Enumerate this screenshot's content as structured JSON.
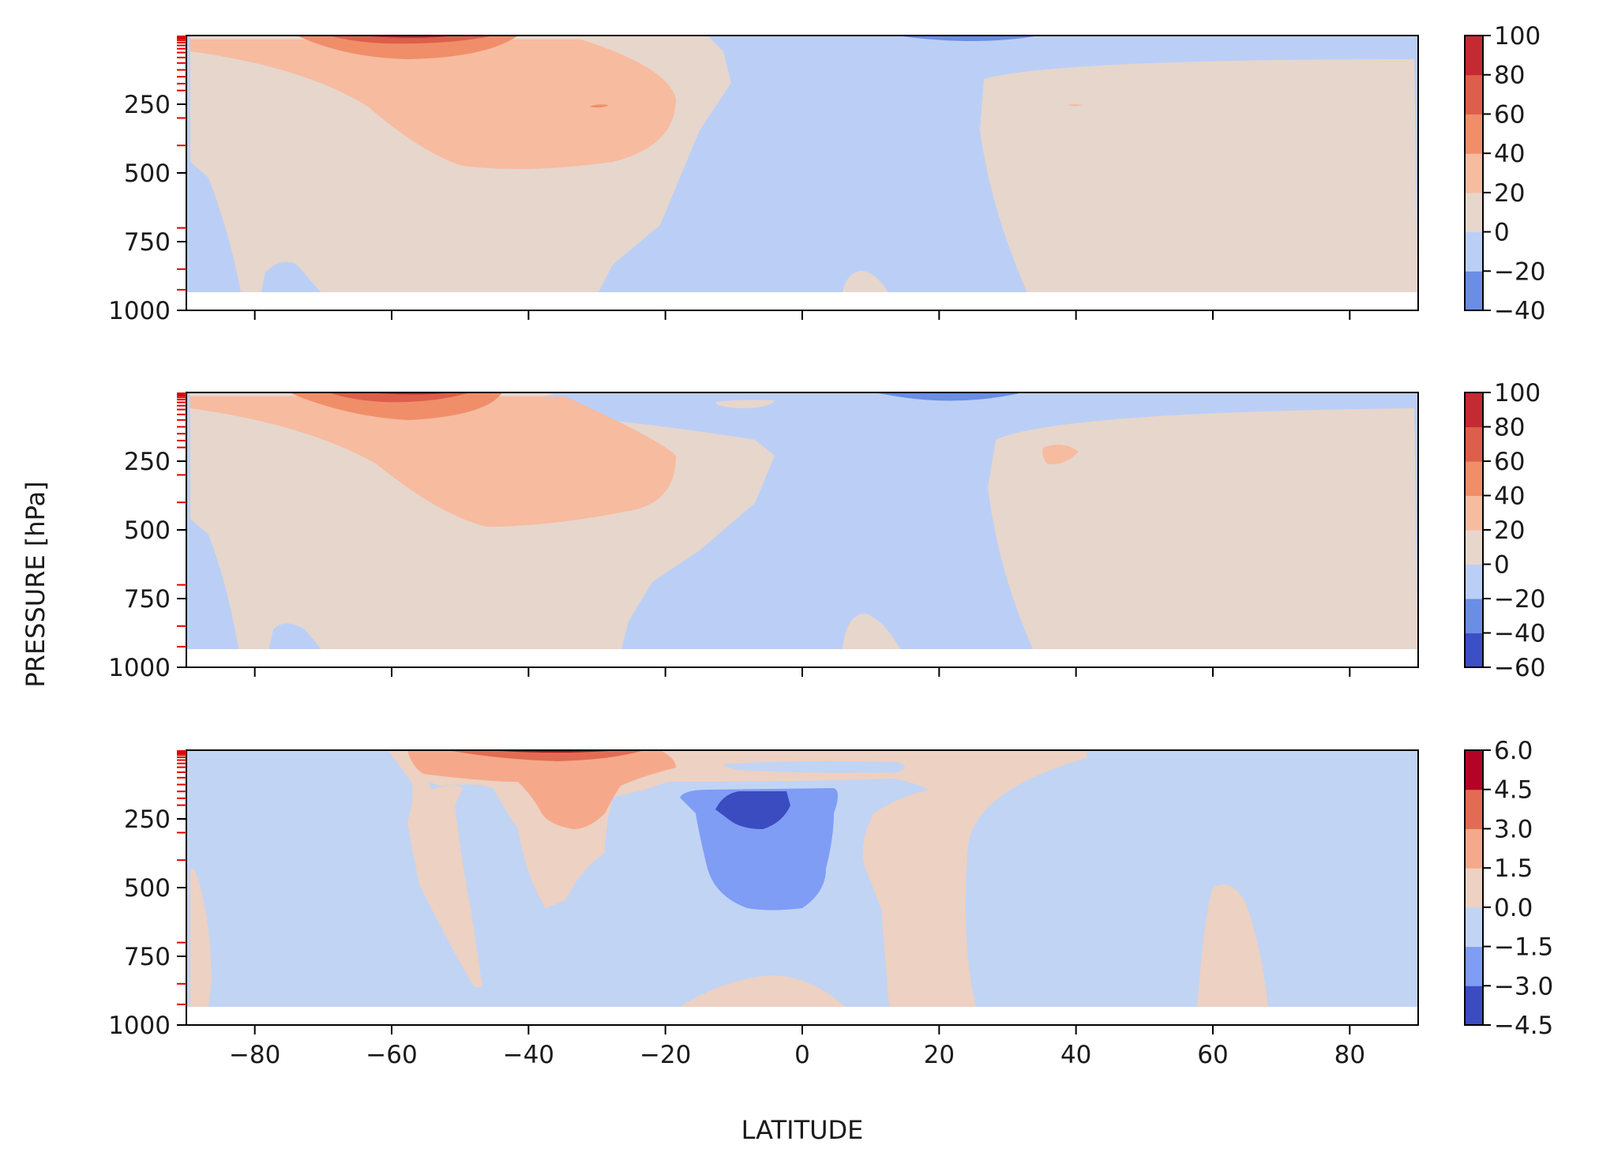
{
  "figure": {
    "xlabel": "LATITUDE",
    "ylabel": "PRESSURE [hPa]"
  },
  "chart_data": {
    "type": "heatmap",
    "subtype": "filled-contour (zonal-mean latitude–pressure cross section), 3 stacked panels",
    "colormap": "coolwarm",
    "xlabel": "LATITUDE",
    "ylabel": "PRESSURE [hPa]",
    "x_ticks": [
      -80,
      -60,
      -40,
      -20,
      0,
      20,
      40,
      60,
      80
    ],
    "x_tick_labels": [
      "−80",
      "−60",
      "−40",
      "−20",
      "0",
      "20",
      "40",
      "60",
      "80"
    ],
    "xlim": [
      -90,
      90
    ],
    "ylim": [
      1000,
      0
    ],
    "y_ticks": [
      250,
      500,
      750,
      1000
    ],
    "y_tick_labels": [
      "250",
      "500",
      "750",
      "1000"
    ],
    "model_levels_hpa": [
      3,
      7,
      12,
      18,
      26,
      36,
      48,
      62,
      80,
      100,
      125,
      150,
      175,
      200,
      300,
      400,
      700,
      850,
      925
    ],
    "model_level_marker_color": "#e00000",
    "data_bottom_hpa": 925,
    "panels": [
      {
        "levels": [
          -40,
          -20,
          0,
          20,
          40,
          60,
          80,
          100
        ],
        "colorbar_tick_labels": [
          "100",
          "80",
          "60",
          "40",
          "20",
          "0",
          "−20",
          "−40"
        ],
        "colors": [
          "#6a8de6",
          "#bbcff6",
          "#e7d6cc",
          "#f7bba0",
          "#f08e6a",
          "#dc5f4b",
          "#c42a32"
        ],
        "regions": [
          {
            "id": "p1-base",
            "level": "-20–0"
          },
          {
            "id": "p1-sh-pos",
            "level": "0–20"
          },
          {
            "id": "p1-nh-pos",
            "level": "0–20"
          },
          {
            "id": "p1-trop-pos",
            "level": "0–20"
          },
          {
            "id": "p1-sh-jet",
            "level": "20–40"
          },
          {
            "id": "p1-sh-jet-core",
            "level": "40–60"
          },
          {
            "id": "p1-sh-jet-top",
            "level": "60–80"
          },
          {
            "id": "p1-nh-strat-neg",
            "level": "-40–-20"
          }
        ]
      },
      {
        "levels": [
          -60,
          -40,
          -20,
          0,
          20,
          40,
          60,
          80,
          100
        ],
        "colorbar_tick_labels": [
          "100",
          "80",
          "60",
          "40",
          "20",
          "0",
          "−20",
          "−40",
          "−60"
        ],
        "colors": [
          "#3d4fc4",
          "#6a8de6",
          "#bbcff6",
          "#e7d6cc",
          "#f7bba0",
          "#f08e6a",
          "#dc5f4b",
          "#c42a32"
        ],
        "regions": [
          {
            "id": "p2-base",
            "level": "-20–0"
          },
          {
            "id": "p2-sh-pos",
            "level": "0–20"
          },
          {
            "id": "p2-nh-pos",
            "level": "0–20"
          },
          {
            "id": "p2-trop-pos",
            "level": "0–20"
          },
          {
            "id": "p2-sh-jet",
            "level": "20–40"
          },
          {
            "id": "p2-sh-jet-core",
            "level": "40–60"
          },
          {
            "id": "p2-nh-blob",
            "level": "20–40"
          },
          {
            "id": "p2-nh-strat-neg",
            "level": "-40–-20"
          }
        ]
      },
      {
        "levels": [
          -4.5,
          -3.0,
          -1.5,
          0.0,
          1.5,
          3.0,
          4.5,
          6.0
        ],
        "colorbar_tick_labels": [
          "6.0",
          "4.5",
          "3.0",
          "1.5",
          "0.0",
          "−1.5",
          "−3.0",
          "−4.5"
        ],
        "colors": [
          "#3b4cc0",
          "#7f9df5",
          "#c1d4f4",
          "#edd1c2",
          "#f6a98a",
          "#e16c53",
          "#b40426"
        ],
        "regions": [
          {
            "id": "p3-base",
            "level": "-1.5–0.0"
          },
          {
            "id": "p3-sh-plume",
            "level": "0.0–1.5"
          },
          {
            "id": "p3-top-band",
            "level": "0.0–1.5"
          },
          {
            "id": "p3-nh-plume",
            "level": "0.0–1.5"
          },
          {
            "id": "p3-nh-finger",
            "level": "0.0–1.5"
          },
          {
            "id": "p3-eq-surface",
            "level": "0.0–1.5"
          },
          {
            "id": "p3-sp-strip",
            "level": "0.0–1.5"
          },
          {
            "id": "p3-sh-warm",
            "level": "1.5–3.0"
          },
          {
            "id": "p3-top-warm",
            "level": "3.0–4.5"
          },
          {
            "id": "p3-eq-cool",
            "level": "-3.0–-1.5"
          },
          {
            "id": "p3-eq-core",
            "level": "-4.5–-3.0"
          },
          {
            "id": "p3-strat-cool",
            "level": "-1.5–0.0"
          }
        ]
      }
    ]
  }
}
